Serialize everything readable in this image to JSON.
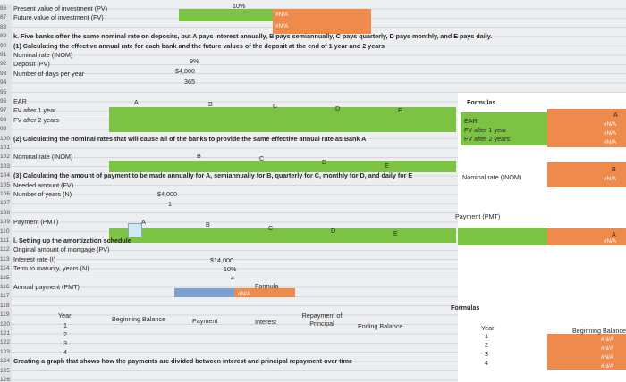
{
  "rows": [
    {
      "number": "86",
      "label": "Present value of investment (PV)"
    },
    {
      "number": "87",
      "label": "Future value of investment (FV)"
    },
    {
      "number": "88"
    },
    {
      "number": "89",
      "label": "k. Five banks offer the same nominal rate on deposits, but A pays interest annually, B pays semiannually, C pays quarterly, D pays monthly, and E pays daily."
    },
    {
      "number": "90",
      "label": "(1) Calculating the effective annual rate for each bank and the future values of the deposit at the end of 1 year and 2 years"
    },
    {
      "number": "91",
      "label": "Nominal rate (INOM)"
    },
    {
      "number": "92",
      "label": "Deposit (PV)"
    },
    {
      "number": "93",
      "label": "Number of days per year"
    },
    {
      "number": "94"
    },
    {
      "number": "95"
    },
    {
      "number": "96",
      "label": "EAR"
    },
    {
      "number": "97",
      "label": "FV after 1 year"
    },
    {
      "number": "98",
      "label": "FV after 2 years"
    },
    {
      "number": "99"
    },
    {
      "number": "100",
      "label": "(2) Calculating the nominal rates that will cause all of the banks to provide the same effective annual rate as Bank A"
    },
    {
      "number": "101"
    },
    {
      "number": "102",
      "label": "Nominal rate (INOM)"
    },
    {
      "number": "103"
    },
    {
      "number": "104",
      "label": "(3) Calculating the amount of payment to be made annually for A, semiannually for B, quarterly for C, monthly for D, and daily for E"
    },
    {
      "number": "105",
      "label": "Needed amount (FV)"
    },
    {
      "number": "106",
      "label": "Number of years (N)"
    },
    {
      "number": "107"
    },
    {
      "number": "108"
    },
    {
      "number": "109",
      "label": "Payment (PMT)"
    },
    {
      "number": "110"
    },
    {
      "number": "111",
      "label": "l. Setting up the amortization schedule"
    },
    {
      "number": "112",
      "label": "Original amount of mortgage (PV)"
    },
    {
      "number": "113",
      "label": "Interest rate (I)"
    },
    {
      "number": "114",
      "label": "Term to maturity, years (N)"
    },
    {
      "number": "115"
    },
    {
      "number": "116",
      "label": "Annual payment (PMT)"
    },
    {
      "number": "117"
    },
    {
      "number": "118"
    },
    {
      "number": "119"
    },
    {
      "number": "120"
    },
    {
      "number": "121"
    },
    {
      "number": "122"
    },
    {
      "number": "123"
    },
    {
      "number": "124",
      "label": "Creating a graph that shows how the payments are divided between interest and principal repayment over time"
    },
    {
      "number": "125"
    },
    {
      "number": "126"
    }
  ],
  "cells": {
    "rate_top": "10%",
    "pv_na": "#N/A",
    "fv_na": "#N/A",
    "nominal_rate": "9%",
    "deposit": "$4,000",
    "days": "365",
    "needed": "$4,000",
    "years": "1",
    "principal": "$14,000",
    "interest_rate": "10%",
    "term": "4",
    "formula": "Formula",
    "pmt_na": "#N/A"
  },
  "headers1": [
    "A",
    "B",
    "C",
    "D",
    "E"
  ],
  "headers2": [
    "B",
    "C",
    "D",
    "E"
  ],
  "headers3": [
    "A",
    "B",
    "C",
    "D",
    "E"
  ],
  "schedule": {
    "headers": [
      "Year",
      "Beginning Balance",
      "Payment",
      "Interest",
      "Repayment of Principal",
      "Ending Balance"
    ],
    "years": [
      "1",
      "2",
      "3",
      "4"
    ]
  },
  "right_panel": {
    "formulas1": "Formulas",
    "labels1": [
      "EAR",
      "FV after 1 year",
      "FV after 2 years"
    ],
    "col1": "A",
    "na1": [
      "#N/A",
      "#N/A",
      "#N/A"
    ],
    "nominal_label": "Nominal rate (INOM)",
    "col2": "B",
    "na2": "#N/A",
    "payment_label": "Payment (PMT)",
    "col3": "A",
    "na3": "#N/A",
    "formulas2": "Formulas",
    "year_header": "Year",
    "years": [
      "1",
      "2",
      "3",
      "4"
    ],
    "balance_header": "Beginning Balance",
    "na4": [
      "#N/A",
      "#N/A",
      "#N/A",
      "#N/A"
    ]
  }
}
